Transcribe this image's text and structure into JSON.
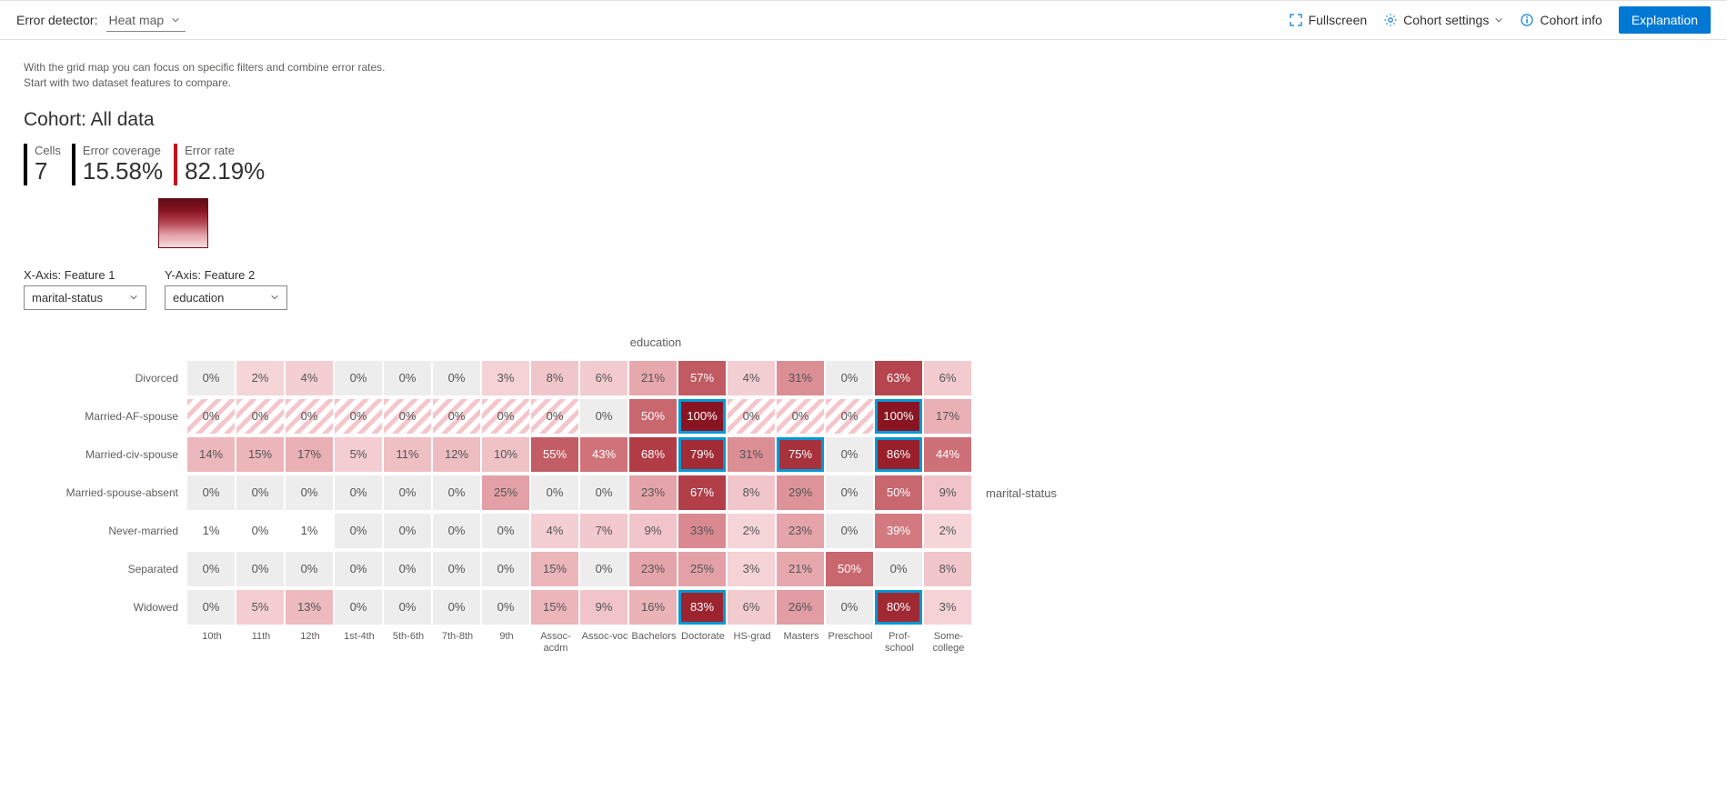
{
  "header": {
    "detector_label": "Error detector:",
    "detector_value": "Heat map",
    "fullscreen": "Fullscreen",
    "cohort_settings": "Cohort settings",
    "cohort_info": "Cohort info",
    "explanation": "Explanation"
  },
  "help_text": "With the grid map you can focus on specific filters and combine error rates. Start with two dataset features to compare.",
  "cohort_label": "Cohort: All data",
  "metrics": {
    "cells_label": "Cells",
    "cells_value": "7",
    "coverage_label": "Error coverage",
    "coverage_value": "15.58%",
    "rate_label": "Error rate",
    "rate_value": "82.19%"
  },
  "legend": {
    "gradient_stops": [
      "#5e0b14",
      "#8a1522",
      "#b74a54",
      "#e4a3a9",
      "#f6dcdf"
    ]
  },
  "axis": {
    "x_label": "X-Axis: Feature 1",
    "x_value": "marital-status",
    "y_label": "Y-Axis: Feature 2",
    "y_value": "education",
    "x_title": "education",
    "y_title": "marital-status"
  },
  "columns": [
    "10th",
    "11th",
    "12th",
    "1st-4th",
    "5th-6th",
    "7th-8th",
    "9th",
    "Assoc-acdm",
    "Assoc-voc",
    "Bachelors",
    "Doctorate",
    "HS-grad",
    "Masters",
    "Preschool",
    "Prof-school",
    "Some-college"
  ],
  "rows": [
    {
      "label": "Divorced",
      "cells": [
        {
          "v": "0%",
          "bg": "#ededed",
          "fg": "#555"
        },
        {
          "v": "2%",
          "bg": "#f5d5d8",
          "fg": "#555"
        },
        {
          "v": "4%",
          "bg": "#f3cfd3",
          "fg": "#555"
        },
        {
          "v": "0%",
          "bg": "#ededed",
          "fg": "#555"
        },
        {
          "v": "0%",
          "bg": "#ededed",
          "fg": "#555"
        },
        {
          "v": "0%",
          "bg": "#ededed",
          "fg": "#555"
        },
        {
          "v": "3%",
          "bg": "#f4d2d6",
          "fg": "#555"
        },
        {
          "v": "8%",
          "bg": "#f1c6cb",
          "fg": "#555"
        },
        {
          "v": "6%",
          "bg": "#f2cbcf",
          "fg": "#555"
        },
        {
          "v": "21%",
          "bg": "#e6a7ad",
          "fg": "#555"
        },
        {
          "v": "57%",
          "bg": "#c15a62",
          "fg": "#fff"
        },
        {
          "v": "4%",
          "bg": "#f3cfd3",
          "fg": "#555"
        },
        {
          "v": "31%",
          "bg": "#dc8e95",
          "fg": "#555"
        },
        {
          "v": "0%",
          "bg": "#ededed",
          "fg": "#555"
        },
        {
          "v": "63%",
          "bg": "#b7454f",
          "fg": "#fff"
        },
        {
          "v": "6%",
          "bg": "#f2cbcf",
          "fg": "#555"
        }
      ]
    },
    {
      "label": "Married-AF-spouse",
      "cells": [
        {
          "v": "0%",
          "striped": true
        },
        {
          "v": "0%",
          "striped": true
        },
        {
          "v": "0%",
          "striped": true
        },
        {
          "v": "0%",
          "striped": true
        },
        {
          "v": "0%",
          "striped": true
        },
        {
          "v": "0%",
          "striped": true
        },
        {
          "v": "0%",
          "striped": true
        },
        {
          "v": "0%",
          "striped": true
        },
        {
          "v": "0%",
          "bg": "#ededed",
          "fg": "#555"
        },
        {
          "v": "50%",
          "bg": "#c9676f",
          "fg": "#fff"
        },
        {
          "v": "100%",
          "bg": "#8a1522",
          "fg": "#fff",
          "sel": true
        },
        {
          "v": "0%",
          "striped": true
        },
        {
          "v": "0%",
          "striped": true
        },
        {
          "v": "0%",
          "striped": true
        },
        {
          "v": "100%",
          "bg": "#8a1522",
          "fg": "#fff",
          "sel": true
        },
        {
          "v": "17%",
          "bg": "#e9b0b5",
          "fg": "#555"
        }
      ]
    },
    {
      "label": "Married-civ-spouse",
      "cells": [
        {
          "v": "14%",
          "bg": "#ecb8bd",
          "fg": "#555"
        },
        {
          "v": "15%",
          "bg": "#ebb5ba",
          "fg": "#555"
        },
        {
          "v": "17%",
          "bg": "#e9b0b5",
          "fg": "#555"
        },
        {
          "v": "5%",
          "bg": "#f3cdd1",
          "fg": "#555"
        },
        {
          "v": "11%",
          "bg": "#eec0c4",
          "fg": "#555"
        },
        {
          "v": "12%",
          "bg": "#edbdc1",
          "fg": "#555"
        },
        {
          "v": "10%",
          "bg": "#efc2c6",
          "fg": "#555"
        },
        {
          "v": "55%",
          "bg": "#c35d65",
          "fg": "#fff"
        },
        {
          "v": "43%",
          "bg": "#cf7279",
          "fg": "#fff"
        },
        {
          "v": "68%",
          "bg": "#b13c46",
          "fg": "#fff"
        },
        {
          "v": "79%",
          "bg": "#a22b35",
          "fg": "#fff",
          "sel": true
        },
        {
          "v": "31%",
          "bg": "#dc8e95",
          "fg": "#555"
        },
        {
          "v": "75%",
          "bg": "#a7323c",
          "fg": "#fff",
          "sel": true
        },
        {
          "v": "0%",
          "bg": "#ededed",
          "fg": "#555"
        },
        {
          "v": "86%",
          "bg": "#991f2a",
          "fg": "#fff",
          "sel": true
        },
        {
          "v": "44%",
          "bg": "#ce7078",
          "fg": "#fff"
        }
      ]
    },
    {
      "label": "Married-spouse-absent",
      "cells": [
        {
          "v": "0%",
          "bg": "#ededed",
          "fg": "#555"
        },
        {
          "v": "0%",
          "bg": "#ededed",
          "fg": "#555"
        },
        {
          "v": "0%",
          "bg": "#ededed",
          "fg": "#555"
        },
        {
          "v": "0%",
          "bg": "#ededed",
          "fg": "#555"
        },
        {
          "v": "0%",
          "bg": "#ededed",
          "fg": "#555"
        },
        {
          "v": "0%",
          "bg": "#ededed",
          "fg": "#555"
        },
        {
          "v": "25%",
          "bg": "#e3a0a6",
          "fg": "#555"
        },
        {
          "v": "0%",
          "bg": "#ededed",
          "fg": "#555"
        },
        {
          "v": "0%",
          "bg": "#ededed",
          "fg": "#555"
        },
        {
          "v": "23%",
          "bg": "#e5a4aa",
          "fg": "#555"
        },
        {
          "v": "67%",
          "bg": "#b23e48",
          "fg": "#fff"
        },
        {
          "v": "8%",
          "bg": "#f1c6cb",
          "fg": "#555"
        },
        {
          "v": "29%",
          "bg": "#de939a",
          "fg": "#555"
        },
        {
          "v": "0%",
          "bg": "#ededed",
          "fg": "#555"
        },
        {
          "v": "50%",
          "bg": "#c9676f",
          "fg": "#fff"
        },
        {
          "v": "9%",
          "bg": "#f0c4c9",
          "fg": "#555"
        }
      ]
    },
    {
      "label": "Never-married",
      "cells": [
        {
          "v": "1%",
          "bg": "#ffffff",
          "fg": "#555"
        },
        {
          "v": "0%",
          "bg": "#ffffff",
          "fg": "#555"
        },
        {
          "v": "1%",
          "bg": "#ffffff",
          "fg": "#555"
        },
        {
          "v": "0%",
          "bg": "#ededed",
          "fg": "#555"
        },
        {
          "v": "0%",
          "bg": "#ededed",
          "fg": "#555"
        },
        {
          "v": "0%",
          "bg": "#ededed",
          "fg": "#555"
        },
        {
          "v": "0%",
          "bg": "#ededed",
          "fg": "#555"
        },
        {
          "v": "4%",
          "bg": "#f3cfd3",
          "fg": "#555"
        },
        {
          "v": "7%",
          "bg": "#f2c9cd",
          "fg": "#555"
        },
        {
          "v": "9%",
          "bg": "#f0c4c9",
          "fg": "#555"
        },
        {
          "v": "33%",
          "bg": "#da8991",
          "fg": "#555"
        },
        {
          "v": "2%",
          "bg": "#f5d5d8",
          "fg": "#555"
        },
        {
          "v": "23%",
          "bg": "#e5a4aa",
          "fg": "#555"
        },
        {
          "v": "0%",
          "bg": "#ededed",
          "fg": "#555"
        },
        {
          "v": "39%",
          "bg": "#d37a81",
          "fg": "#fff"
        },
        {
          "v": "2%",
          "bg": "#f5d5d8",
          "fg": "#555"
        }
      ]
    },
    {
      "label": "Separated",
      "cells": [
        {
          "v": "0%",
          "bg": "#ededed",
          "fg": "#555"
        },
        {
          "v": "0%",
          "bg": "#ededed",
          "fg": "#555"
        },
        {
          "v": "0%",
          "bg": "#ededed",
          "fg": "#555"
        },
        {
          "v": "0%",
          "bg": "#ededed",
          "fg": "#555"
        },
        {
          "v": "0%",
          "bg": "#ededed",
          "fg": "#555"
        },
        {
          "v": "0%",
          "bg": "#ededed",
          "fg": "#555"
        },
        {
          "v": "0%",
          "bg": "#ededed",
          "fg": "#555"
        },
        {
          "v": "15%",
          "bg": "#ebb5ba",
          "fg": "#555"
        },
        {
          "v": "0%",
          "bg": "#ededed",
          "fg": "#555"
        },
        {
          "v": "23%",
          "bg": "#e5a4aa",
          "fg": "#555"
        },
        {
          "v": "25%",
          "bg": "#e3a0a6",
          "fg": "#555"
        },
        {
          "v": "3%",
          "bg": "#f4d2d6",
          "fg": "#555"
        },
        {
          "v": "21%",
          "bg": "#e6a7ad",
          "fg": "#555"
        },
        {
          "v": "50%",
          "bg": "#c9676f",
          "fg": "#fff"
        },
        {
          "v": "0%",
          "bg": "#ededed",
          "fg": "#555"
        },
        {
          "v": "8%",
          "bg": "#f1c6cb",
          "fg": "#555"
        }
      ]
    },
    {
      "label": "Widowed",
      "cells": [
        {
          "v": "0%",
          "bg": "#ededed",
          "fg": "#555"
        },
        {
          "v": "5%",
          "bg": "#f3cdd1",
          "fg": "#555"
        },
        {
          "v": "13%",
          "bg": "#edbabf",
          "fg": "#555"
        },
        {
          "v": "0%",
          "bg": "#ededed",
          "fg": "#555"
        },
        {
          "v": "0%",
          "bg": "#ededed",
          "fg": "#555"
        },
        {
          "v": "0%",
          "bg": "#ededed",
          "fg": "#555"
        },
        {
          "v": "0%",
          "bg": "#ededed",
          "fg": "#555"
        },
        {
          "v": "15%",
          "bg": "#ebb5ba",
          "fg": "#555"
        },
        {
          "v": "9%",
          "bg": "#f0c4c9",
          "fg": "#555"
        },
        {
          "v": "16%",
          "bg": "#eab3b8",
          "fg": "#555"
        },
        {
          "v": "83%",
          "bg": "#9d242f",
          "fg": "#fff",
          "sel": true
        },
        {
          "v": "6%",
          "bg": "#f2cbcf",
          "fg": "#555"
        },
        {
          "v": "26%",
          "bg": "#e19da3",
          "fg": "#555"
        },
        {
          "v": "0%",
          "bg": "#ededed",
          "fg": "#555"
        },
        {
          "v": "80%",
          "bg": "#a12934",
          "fg": "#fff",
          "sel": true
        },
        {
          "v": "3%",
          "bg": "#f4d2d6",
          "fg": "#555"
        }
      ]
    }
  ]
}
